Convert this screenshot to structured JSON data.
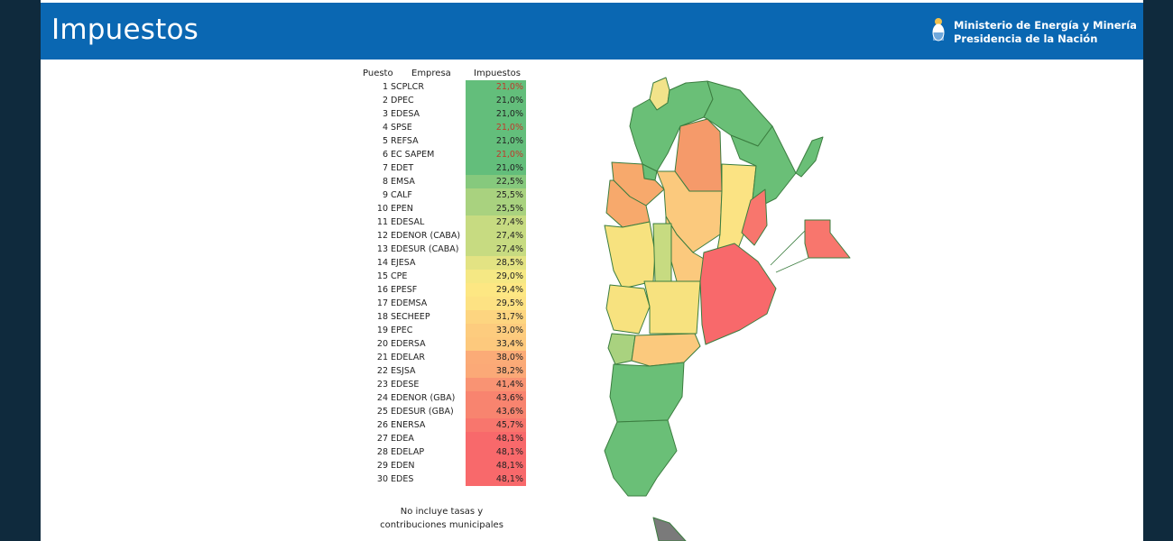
{
  "header": {
    "title": "Impuestos",
    "ministry_line1": "Ministerio de Energía y Minería",
    "ministry_line2": "Presidencia de la Nación",
    "background": "#0a67b2"
  },
  "table": {
    "columns": [
      "Puesto",
      "Empresa",
      "Impuestos"
    ],
    "rows": [
      {
        "rank": "1",
        "company": "SCPLCR",
        "tax": "21,0%",
        "color": "#63be7b",
        "text_color": "#c0392b"
      },
      {
        "rank": "2",
        "company": "DPEC",
        "tax": "21,0%",
        "color": "#63be7b",
        "text_color": "#222222"
      },
      {
        "rank": "3",
        "company": "EDESA",
        "tax": "21,0%",
        "color": "#63be7b",
        "text_color": "#222222"
      },
      {
        "rank": "4",
        "company": "SPSE",
        "tax": "21,0%",
        "color": "#63be7b",
        "text_color": "#c0392b"
      },
      {
        "rank": "5",
        "company": "REFSA",
        "tax": "21,0%",
        "color": "#63be7b",
        "text_color": "#222222"
      },
      {
        "rank": "6",
        "company": "EC SAPEM",
        "tax": "21,0%",
        "color": "#63be7b",
        "text_color": "#c0392b"
      },
      {
        "rank": "7",
        "company": "EDET",
        "tax": "21,0%",
        "color": "#63be7b",
        "text_color": "#222222"
      },
      {
        "rank": "8",
        "company": "EMSA",
        "tax": "22,5%",
        "color": "#86c97d",
        "text_color": "#222222"
      },
      {
        "rank": "9",
        "company": "CALF",
        "tax": "25,5%",
        "color": "#a9d27f",
        "text_color": "#222222"
      },
      {
        "rank": "10",
        "company": "EPEN",
        "tax": "25,5%",
        "color": "#a9d27f",
        "text_color": "#222222"
      },
      {
        "rank": "11",
        "company": "EDESAL",
        "tax": "27,4%",
        "color": "#c7db81",
        "text_color": "#222222"
      },
      {
        "rank": "12",
        "company": "EDENOR (CABA)",
        "tax": "27,4%",
        "color": "#c7db81",
        "text_color": "#222222"
      },
      {
        "rank": "13",
        "company": "EDESUR (CABA)",
        "tax": "27,4%",
        "color": "#c7db81",
        "text_color": "#222222"
      },
      {
        "rank": "14",
        "company": "EJESA",
        "tax": "28,5%",
        "color": "#e3e383",
        "text_color": "#222222"
      },
      {
        "rank": "15",
        "company": "CPE",
        "tax": "29,0%",
        "color": "#f5e884",
        "text_color": "#222222"
      },
      {
        "rank": "16",
        "company": "EPESF",
        "tax": "29,4%",
        "color": "#fde783",
        "text_color": "#222222"
      },
      {
        "rank": "17",
        "company": "EDEMSA",
        "tax": "29,5%",
        "color": "#fde283",
        "text_color": "#222222"
      },
      {
        "rank": "18",
        "company": "SECHEEP",
        "tax": "31,7%",
        "color": "#fdd580",
        "text_color": "#222222"
      },
      {
        "rank": "19",
        "company": "EPEC",
        "tax": "33,0%",
        "color": "#fdcc7e",
        "text_color": "#222222"
      },
      {
        "rank": "20",
        "company": "EDERSA",
        "tax": "33,4%",
        "color": "#fdc97d",
        "text_color": "#222222"
      },
      {
        "rank": "21",
        "company": "EDELAR",
        "tax": "38,0%",
        "color": "#fbab77",
        "text_color": "#222222"
      },
      {
        "rank": "22",
        "company": "ESJSA",
        "tax": "38,2%",
        "color": "#fba977",
        "text_color": "#222222"
      },
      {
        "rank": "23",
        "company": "EDESE",
        "tax": "41,4%",
        "color": "#f99373",
        "text_color": "#222222"
      },
      {
        "rank": "24",
        "company": "EDENOR (GBA)",
        "tax": "43,6%",
        "color": "#f8846f",
        "text_color": "#222222"
      },
      {
        "rank": "25",
        "company": "EDESUR (GBA)",
        "tax": "43,6%",
        "color": "#f8846f",
        "text_color": "#222222"
      },
      {
        "rank": "26",
        "company": "ENERSA",
        "tax": "45,7%",
        "color": "#f8766d",
        "text_color": "#222222"
      },
      {
        "rank": "27",
        "company": "EDEA",
        "tax": "48,1%",
        "color": "#f8696b",
        "text_color": "#222222"
      },
      {
        "rank": "28",
        "company": "EDELAP",
        "tax": "48,1%",
        "color": "#f8696b",
        "text_color": "#222222"
      },
      {
        "rank": "29",
        "company": "EDEN",
        "tax": "48,1%",
        "color": "#f8696b",
        "text_color": "#222222"
      },
      {
        "rank": "30",
        "company": "EDES",
        "tax": "48,1%",
        "color": "#f8696b",
        "text_color": "#222222"
      }
    ]
  },
  "note": "No incluye tasas y contribuciones municipales",
  "map": {
    "provinces": [
      {
        "name": "jujuy-province",
        "color": "#f2e38a"
      },
      {
        "name": "salta-province",
        "color": "#6abf77"
      },
      {
        "name": "formosa-province",
        "color": "#6abf77"
      },
      {
        "name": "chaco-province",
        "color": "#f59a6a"
      },
      {
        "name": "misiones-province",
        "color": "#6abf77"
      },
      {
        "name": "tucuman-province",
        "color": "#6abf77"
      },
      {
        "name": "catamarca-province",
        "color": "#f7a96c"
      },
      {
        "name": "santiago-del-estero-province",
        "color": "#fbc97d"
      },
      {
        "name": "santa-fe-province",
        "color": "#fbe383"
      },
      {
        "name": "corrientes-province",
        "color": "#6abf77"
      },
      {
        "name": "la-rioja-province",
        "color": "#f7a96c"
      },
      {
        "name": "san-juan-province",
        "color": "#f7e27f"
      },
      {
        "name": "cordoba-province",
        "color": "#fbc97d"
      },
      {
        "name": "entre-rios-province",
        "color": "#f8766d"
      },
      {
        "name": "san-luis-province",
        "color": "#c7db81"
      },
      {
        "name": "mendoza-province",
        "color": "#f7e27f"
      },
      {
        "name": "la-pampa-province",
        "color": "#f7e27f"
      },
      {
        "name": "buenos-aires-province",
        "color": "#f8696b"
      },
      {
        "name": "neuquen-province",
        "color": "#a9d27f"
      },
      {
        "name": "rio-negro-province",
        "color": "#fbc97d"
      },
      {
        "name": "chubut-province",
        "color": "#6abf77"
      },
      {
        "name": "santa-cruz-province",
        "color": "#6abf77"
      },
      {
        "name": "tierra-del-fuego-province",
        "color": "#7a7a7a"
      },
      {
        "name": "caba-inset",
        "color": "#f8766d"
      }
    ],
    "border_color": "#3b7d3f"
  }
}
